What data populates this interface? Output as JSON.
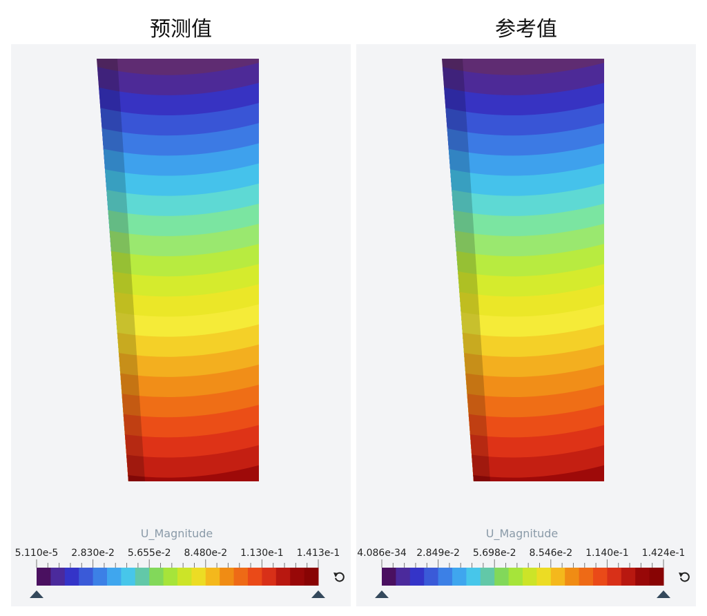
{
  "panels": [
    {
      "title": "预测值",
      "legend": {
        "label": "U_Magnitude",
        "ticks": [
          "5.110e-5",
          "2.830e-2",
          "5.655e-2",
          "8.480e-2",
          "1.130e-1",
          "1.413e-1"
        ]
      }
    },
    {
      "title": "参考值",
      "legend": {
        "label": "U_Magnitude",
        "ticks": [
          "4.086e-34",
          "2.849e-2",
          "5.698e-2",
          "8.546e-2",
          "1.140e-1",
          "1.424e-1"
        ]
      }
    }
  ]
}
